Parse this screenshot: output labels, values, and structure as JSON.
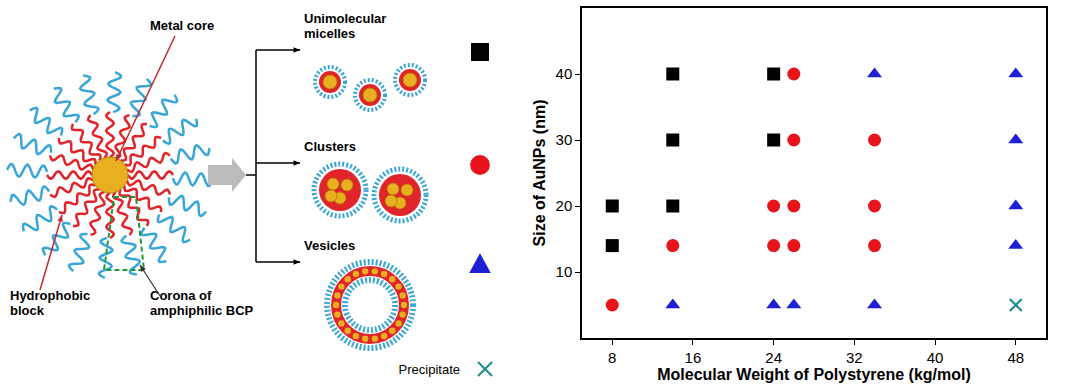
{
  "diagram": {
    "labels": {
      "metal_core": "Metal core",
      "hydrophobic_block": "Hydrophobic block",
      "corona": "Corona of amphiphilic BCP"
    }
  },
  "chart_data": {
    "type": "scatter",
    "x_label": "Molecular Weight of Polystyrene (kg/mol)",
    "y_label": "Size of AuNPs (nm)",
    "xlim": [
      5,
      51
    ],
    "ylim": [
      0,
      50
    ],
    "xticks": [
      8,
      16,
      24,
      32,
      40,
      48
    ],
    "yticks": [
      10,
      20,
      30,
      40
    ],
    "grid": false,
    "series": [
      {
        "name": "Unimolecular micelles",
        "color": "#000000",
        "marker": "square",
        "x": [
          8,
          8,
          14,
          14,
          14,
          24,
          24
        ],
        "values": [
          20,
          14,
          40,
          30,
          20,
          40,
          30
        ]
      },
      {
        "name": "Clusters",
        "color": "#e8141c",
        "marker": "circle",
        "x": [
          8,
          14,
          24,
          24,
          26,
          26,
          26,
          26,
          34,
          34,
          34
        ],
        "values": [
          5,
          14,
          20,
          14,
          40,
          30,
          20,
          14,
          30,
          20,
          14
        ]
      },
      {
        "name": "Vesicles",
        "color": "#1f1fd6",
        "marker": "triangle",
        "x": [
          14,
          24,
          26,
          34,
          34,
          48,
          48,
          48,
          48
        ],
        "values": [
          5,
          5,
          5,
          40,
          5,
          40,
          30,
          20,
          14
        ]
      },
      {
        "name": "Precipitate",
        "color": "#17898a",
        "marker": "x",
        "x": [
          48
        ],
        "values": [
          5
        ]
      }
    ]
  }
}
